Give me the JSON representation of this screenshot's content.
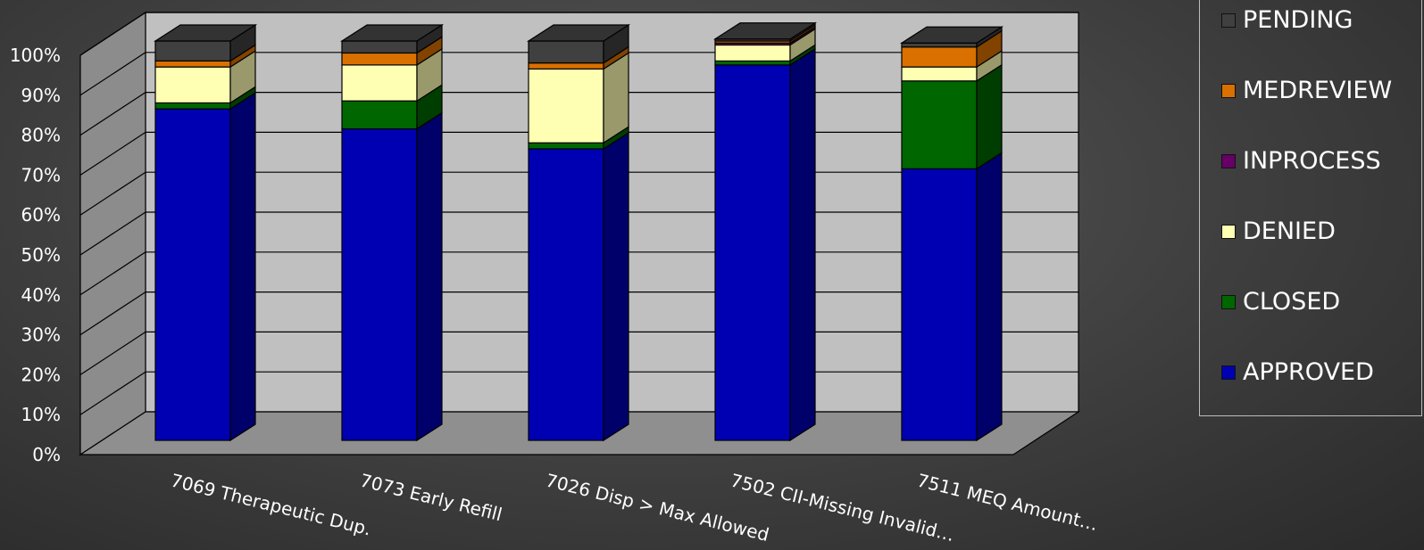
{
  "chart_data": {
    "type": "bar",
    "stacked": true,
    "percent": true,
    "three_d": true,
    "categories": [
      "7069 Therapeutic Dup.",
      "7073  Early Refill",
      "7026  Disp > Max Allowed",
      "7502  CII-Missing Invalid…",
      "7511  MEQ Amount…"
    ],
    "series": [
      {
        "name": "APPROVED",
        "color": "#0000b3",
        "values": [
          83,
          78,
          73,
          94,
          68
        ]
      },
      {
        "name": "CLOSED",
        "color": "#006600",
        "values": [
          1.5,
          7,
          1.5,
          1,
          22
        ]
      },
      {
        "name": "DENIED",
        "color": "#ffffb3",
        "values": [
          9,
          9,
          18.5,
          4,
          3.5
        ]
      },
      {
        "name": "INPROCESS",
        "color": "#660066",
        "values": [
          0,
          0,
          0,
          0.5,
          0
        ]
      },
      {
        "name": "MEDREVIEW",
        "color": "#d97000",
        "values": [
          1.5,
          3,
          1.5,
          0.5,
          5
        ]
      },
      {
        "name": "PENDING",
        "color": "#404040",
        "values": [
          5,
          3,
          5.5,
          0.5,
          1
        ]
      }
    ],
    "y_ticks": [
      "0%",
      "10%",
      "20%",
      "30%",
      "40%",
      "50%",
      "60%",
      "70%",
      "80%",
      "90%",
      "100%"
    ],
    "ylim": [
      0,
      100
    ],
    "grid": true,
    "legend_position": "right",
    "legend_order": [
      "PENDING",
      "MEDREVIEW",
      "INPROCESS",
      "DENIED",
      "CLOSED",
      "APPROVED"
    ]
  }
}
